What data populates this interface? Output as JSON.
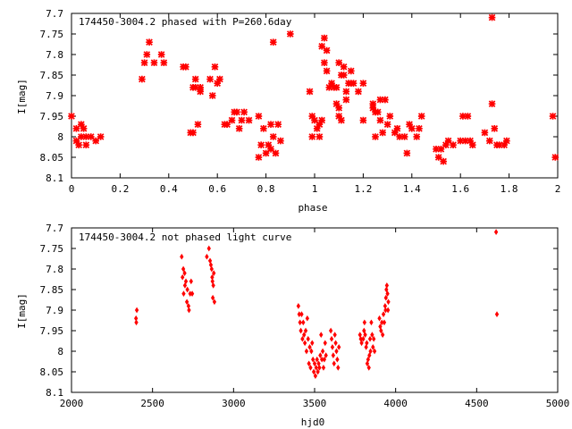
{
  "chart_data": [
    {
      "type": "scatter",
      "title": "174450-3004.2 phased with P=260.6day",
      "xlabel": "phase",
      "ylabel": "I[mag]",
      "xlim": [
        0,
        2
      ],
      "ylim": [
        8.1,
        7.7
      ],
      "y_inverted": true,
      "marker": "star",
      "color": "#ff0000",
      "grid": false,
      "xticks": [
        "0",
        "0.2",
        "0.4",
        "0.6",
        "0.8",
        "1",
        "1.2",
        "1.4",
        "1.6",
        "1.8",
        "2"
      ],
      "yticks": [
        "7.7",
        "7.75",
        "7.8",
        "7.85",
        "7.9",
        "7.95",
        "8",
        "8.05",
        "8.1"
      ],
      "points": [
        [
          0.0,
          7.95
        ],
        [
          0.02,
          8.01
        ],
        [
          0.02,
          7.98
        ],
        [
          0.03,
          8.02
        ],
        [
          0.04,
          7.97
        ],
        [
          0.04,
          8.0
        ],
        [
          0.05,
          7.98
        ],
        [
          0.06,
          8.02
        ],
        [
          0.06,
          8.0
        ],
        [
          0.08,
          8.0
        ],
        [
          0.1,
          8.01
        ],
        [
          0.12,
          8.0
        ],
        [
          0.29,
          7.86
        ],
        [
          0.3,
          7.82
        ],
        [
          0.31,
          7.8
        ],
        [
          0.32,
          7.77
        ],
        [
          0.34,
          7.82
        ],
        [
          0.37,
          7.8
        ],
        [
          0.38,
          7.82
        ],
        [
          0.46,
          7.83
        ],
        [
          0.47,
          7.83
        ],
        [
          0.49,
          7.99
        ],
        [
          0.5,
          7.88
        ],
        [
          0.5,
          7.99
        ],
        [
          0.51,
          7.86
        ],
        [
          0.51,
          7.88
        ],
        [
          0.52,
          7.97
        ],
        [
          0.53,
          7.88
        ],
        [
          0.53,
          7.89
        ],
        [
          0.57,
          7.86
        ],
        [
          0.58,
          7.9
        ],
        [
          0.59,
          7.83
        ],
        [
          0.6,
          7.87
        ],
        [
          0.61,
          7.86
        ],
        [
          0.63,
          7.97
        ],
        [
          0.64,
          7.97
        ],
        [
          0.66,
          7.96
        ],
        [
          0.67,
          7.94
        ],
        [
          0.68,
          7.94
        ],
        [
          0.69,
          7.98
        ],
        [
          0.7,
          7.96
        ],
        [
          0.71,
          7.94
        ],
        [
          0.73,
          7.96
        ],
        [
          0.77,
          7.95
        ],
        [
          0.77,
          8.05
        ],
        [
          0.78,
          8.02
        ],
        [
          0.79,
          7.98
        ],
        [
          0.8,
          8.04
        ],
        [
          0.81,
          8.02
        ],
        [
          0.82,
          8.03
        ],
        [
          0.82,
          7.97
        ],
        [
          0.83,
          8.0
        ],
        [
          0.83,
          7.77
        ],
        [
          0.84,
          8.04
        ],
        [
          0.85,
          7.97
        ],
        [
          0.86,
          8.01
        ],
        [
          0.9,
          7.75
        ],
        [
          0.98,
          7.89
        ],
        [
          0.99,
          8.0
        ],
        [
          0.99,
          7.95
        ],
        [
          1.0,
          7.96
        ],
        [
          1.01,
          7.98
        ],
        [
          1.02,
          7.97
        ],
        [
          1.02,
          8.0
        ],
        [
          1.03,
          7.78
        ],
        [
          1.03,
          7.96
        ],
        [
          1.04,
          7.76
        ],
        [
          1.04,
          7.82
        ],
        [
          1.05,
          7.79
        ],
        [
          1.05,
          7.84
        ],
        [
          1.06,
          7.88
        ],
        [
          1.07,
          7.87
        ],
        [
          1.08,
          7.88
        ],
        [
          1.09,
          7.88
        ],
        [
          1.09,
          7.92
        ],
        [
          1.1,
          7.93
        ],
        [
          1.1,
          7.82
        ],
        [
          1.1,
          7.95
        ],
        [
          1.11,
          7.85
        ],
        [
          1.11,
          7.96
        ],
        [
          1.12,
          7.83
        ],
        [
          1.12,
          7.85
        ],
        [
          1.13,
          7.91
        ],
        [
          1.13,
          7.89
        ],
        [
          1.14,
          7.87
        ],
        [
          1.15,
          7.87
        ],
        [
          1.15,
          7.84
        ],
        [
          1.16,
          7.87
        ],
        [
          1.18,
          7.89
        ],
        [
          1.2,
          7.87
        ],
        [
          1.2,
          7.96
        ],
        [
          1.24,
          7.92
        ],
        [
          1.24,
          7.93
        ],
        [
          1.25,
          8.0
        ],
        [
          1.25,
          7.94
        ],
        [
          1.26,
          7.94
        ],
        [
          1.27,
          7.96
        ],
        [
          1.27,
          7.91
        ],
        [
          1.28,
          7.99
        ],
        [
          1.29,
          7.91
        ],
        [
          1.3,
          7.97
        ],
        [
          1.31,
          7.95
        ],
        [
          1.33,
          7.99
        ],
        [
          1.34,
          7.98
        ],
        [
          1.35,
          8.0
        ],
        [
          1.37,
          8.0
        ],
        [
          1.38,
          8.04
        ],
        [
          1.39,
          7.97
        ],
        [
          1.4,
          7.98
        ],
        [
          1.42,
          8.0
        ],
        [
          1.43,
          7.98
        ],
        [
          1.44,
          7.95
        ],
        [
          1.5,
          8.03
        ],
        [
          1.51,
          8.05
        ],
        [
          1.52,
          8.03
        ],
        [
          1.53,
          8.06
        ],
        [
          1.54,
          8.02
        ],
        [
          1.55,
          8.01
        ],
        [
          1.57,
          8.02
        ],
        [
          1.6,
          8.01
        ],
        [
          1.61,
          7.95
        ],
        [
          1.62,
          8.01
        ],
        [
          1.63,
          7.95
        ],
        [
          1.64,
          8.01
        ],
        [
          1.65,
          8.02
        ],
        [
          1.7,
          7.99
        ],
        [
          1.72,
          8.01
        ],
        [
          1.73,
          7.92
        ],
        [
          1.73,
          7.71
        ],
        [
          1.74,
          7.98
        ],
        [
          1.75,
          8.02
        ],
        [
          1.76,
          8.02
        ],
        [
          1.78,
          8.02
        ],
        [
          1.79,
          8.01
        ],
        [
          1.98,
          7.95
        ],
        [
          1.99,
          8.05
        ]
      ]
    },
    {
      "type": "scatter",
      "title": "174450-3004.2 not phased light curve",
      "xlabel": "hjd0",
      "ylabel": "I[mag]",
      "xlim": [
        2000,
        5000
      ],
      "ylim": [
        8.1,
        7.7
      ],
      "y_inverted": true,
      "marker": "diamond",
      "color": "#ff0000",
      "grid": false,
      "xticks": [
        "2000",
        "2500",
        "3000",
        "3500",
        "4000",
        "4500",
        "5000"
      ],
      "yticks": [
        "7.7",
        "7.75",
        "7.8",
        "7.85",
        "7.9",
        "7.95",
        "8",
        "8.05",
        "8.1"
      ],
      "points": [
        [
          2398,
          7.92
        ],
        [
          2400,
          7.93
        ],
        [
          2403,
          7.9
        ],
        [
          2680,
          7.77
        ],
        [
          2685,
          7.82
        ],
        [
          2690,
          7.8
        ],
        [
          2692,
          7.86
        ],
        [
          2698,
          7.81
        ],
        [
          2700,
          7.84
        ],
        [
          2706,
          7.83
        ],
        [
          2712,
          7.88
        ],
        [
          2715,
          7.85
        ],
        [
          2722,
          7.89
        ],
        [
          2725,
          7.9
        ],
        [
          2732,
          7.86
        ],
        [
          2738,
          7.83
        ],
        [
          2745,
          7.86
        ],
        [
          2835,
          7.77
        ],
        [
          2848,
          7.75
        ],
        [
          2855,
          7.78
        ],
        [
          2860,
          7.79
        ],
        [
          2865,
          7.8
        ],
        [
          2868,
          7.82
        ],
        [
          2870,
          7.83
        ],
        [
          2872,
          7.87
        ],
        [
          2875,
          7.84
        ],
        [
          2878,
          7.81
        ],
        [
          2882,
          7.88
        ],
        [
          3400,
          7.89
        ],
        [
          3405,
          7.91
        ],
        [
          3410,
          7.93
        ],
        [
          3415,
          7.95
        ],
        [
          3420,
          7.91
        ],
        [
          3425,
          7.97
        ],
        [
          3430,
          7.93
        ],
        [
          3435,
          7.96
        ],
        [
          3440,
          7.98
        ],
        [
          3445,
          7.95
        ],
        [
          3450,
          8.0
        ],
        [
          3455,
          7.92
        ],
        [
          3460,
          7.97
        ],
        [
          3465,
          8.03
        ],
        [
          3470,
          7.99
        ],
        [
          3475,
          8.04
        ],
        [
          3480,
          8.0
        ],
        [
          3485,
          7.98
        ],
        [
          3490,
          8.02
        ],
        [
          3495,
          8.05
        ],
        [
          3500,
          8.03
        ],
        [
          3505,
          8.06
        ],
        [
          3510,
          8.04
        ],
        [
          3515,
          8.02
        ],
        [
          3520,
          8.05
        ],
        [
          3525,
          8.03
        ],
        [
          3530,
          8.04
        ],
        [
          3535,
          8.01
        ],
        [
          3540,
          7.96
        ],
        [
          3545,
          8.02
        ],
        [
          3550,
          8.0
        ],
        [
          3555,
          8.04
        ],
        [
          3560,
          8.02
        ],
        [
          3565,
          7.98
        ],
        [
          3570,
          8.01
        ],
        [
          3600,
          7.95
        ],
        [
          3605,
          7.97
        ],
        [
          3610,
          7.99
        ],
        [
          3615,
          8.01
        ],
        [
          3620,
          8.03
        ],
        [
          3625,
          7.96
        ],
        [
          3630,
          7.98
        ],
        [
          3635,
          8.0
        ],
        [
          3640,
          8.02
        ],
        [
          3645,
          8.04
        ],
        [
          3650,
          7.99
        ],
        [
          3780,
          7.96
        ],
        [
          3785,
          7.97
        ],
        [
          3790,
          7.98
        ],
        [
          3800,
          7.97
        ],
        [
          3805,
          7.95
        ],
        [
          3808,
          7.93
        ],
        [
          3812,
          7.96
        ],
        [
          3818,
          7.99
        ],
        [
          3822,
          7.98
        ],
        [
          3825,
          8.03
        ],
        [
          3830,
          8.02
        ],
        [
          3835,
          8.04
        ],
        [
          3838,
          8.01
        ],
        [
          3842,
          7.97
        ],
        [
          3845,
          8.0
        ],
        [
          3850,
          7.93
        ],
        [
          3855,
          7.96
        ],
        [
          3860,
          7.99
        ],
        [
          3865,
          7.97
        ],
        [
          3870,
          8.0
        ],
        [
          3900,
          7.92
        ],
        [
          3905,
          7.94
        ],
        [
          3910,
          7.95
        ],
        [
          3915,
          7.93
        ],
        [
          3920,
          7.96
        ],
        [
          3925,
          7.91
        ],
        [
          3930,
          7.93
        ],
        [
          3935,
          7.89
        ],
        [
          3938,
          7.9
        ],
        [
          3940,
          7.87
        ],
        [
          3943,
          7.85
        ],
        [
          3946,
          7.84
        ],
        [
          3950,
          7.86
        ],
        [
          3953,
          7.9
        ],
        [
          3955,
          7.88
        ],
        [
          4620,
          7.71
        ],
        [
          4625,
          7.91
        ]
      ]
    }
  ]
}
